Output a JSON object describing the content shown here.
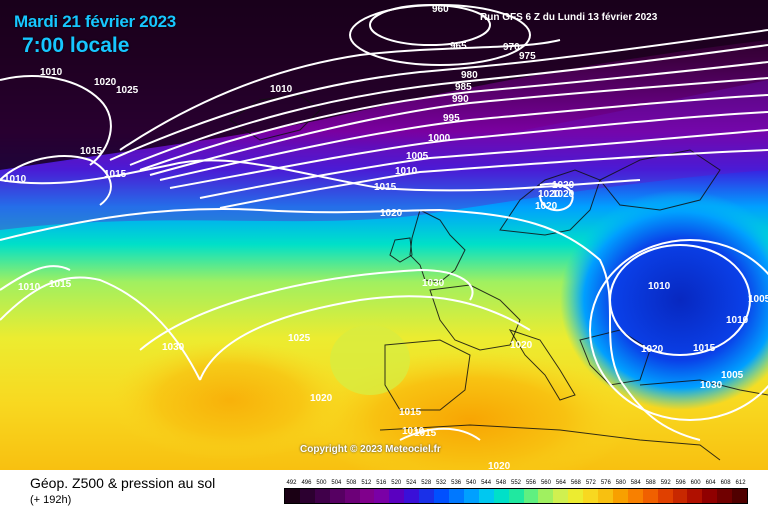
{
  "header": {
    "date": "Mardi 21 février 2023",
    "time": "7:00 locale",
    "run": "Run GFS 6 Z du Lundi 13 février 2023"
  },
  "copyright": "Copyright © 2023 Meteociel.fr",
  "footer": {
    "title": "Géop. Z500 & pression au sol",
    "subtitle": "(+ 192h)"
  },
  "scale": {
    "labels": [
      "492",
      "496",
      "500",
      "504",
      "508",
      "512",
      "516",
      "520",
      "524",
      "528",
      "532",
      "536",
      "540",
      "544",
      "548",
      "552",
      "556",
      "560",
      "564",
      "568",
      "572",
      "576",
      "580",
      "584",
      "588",
      "592",
      "596",
      "600",
      "604",
      "608",
      "612"
    ],
    "colors": [
      "#1a0014",
      "#2c0030",
      "#40004a",
      "#560062",
      "#6c0078",
      "#80008c",
      "#7a00a6",
      "#5a00c0",
      "#3a10d8",
      "#1a30e8",
      "#0050ff",
      "#0078ff",
      "#00a0ff",
      "#00c8f0",
      "#00e0c8",
      "#20e8a0",
      "#60f080",
      "#a0f060",
      "#d0f050",
      "#ecec30",
      "#f8d820",
      "#f8c010",
      "#f8a000",
      "#f88000",
      "#f06000",
      "#e04000",
      "#c82800",
      "#b01000",
      "#900000",
      "#700000",
      "#500000"
    ]
  },
  "isobars": [
    "960",
    "965",
    "970",
    "975",
    "980",
    "985",
    "990",
    "995",
    "1000",
    "1005",
    "1010",
    "1015",
    "1020",
    "1025",
    "1030",
    "1005",
    "1010",
    "1015",
    "1020",
    "1010",
    "1015",
    "1020",
    "1030",
    "1020",
    "1020",
    "1020",
    "1010",
    "1010",
    "1015",
    "1020",
    "1015",
    "1010",
    "1005",
    "1015",
    "1025",
    "1020",
    "1020",
    "1020",
    "1030",
    "1015",
    "1010",
    "1010"
  ],
  "map": {
    "zones": {
      "deep_purple": "#2a0030",
      "purple": "#7a009a",
      "blue": "#1a40e0",
      "cyan": "#00c8f0",
      "green": "#60f080",
      "yellow": "#ecec30",
      "orange": "#f8c010",
      "low_blue": "#0a30d8"
    }
  }
}
